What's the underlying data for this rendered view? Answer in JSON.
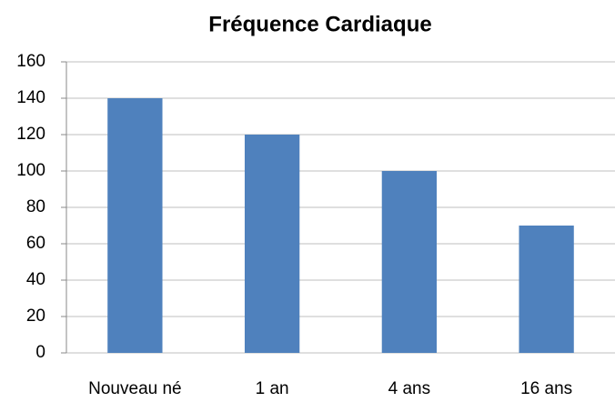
{
  "chart_data": {
    "type": "bar",
    "title": "Fréquence Cardiaque",
    "categories": [
      "Nouveau né",
      "1 an",
      "4 ans",
      "16 ans"
    ],
    "values": [
      140,
      120,
      100,
      70
    ],
    "color": "#4f81bd",
    "ylim": [
      0,
      160
    ],
    "yticks": [
      0,
      20,
      40,
      60,
      80,
      100,
      120,
      140,
      160
    ],
    "grid": true
  }
}
